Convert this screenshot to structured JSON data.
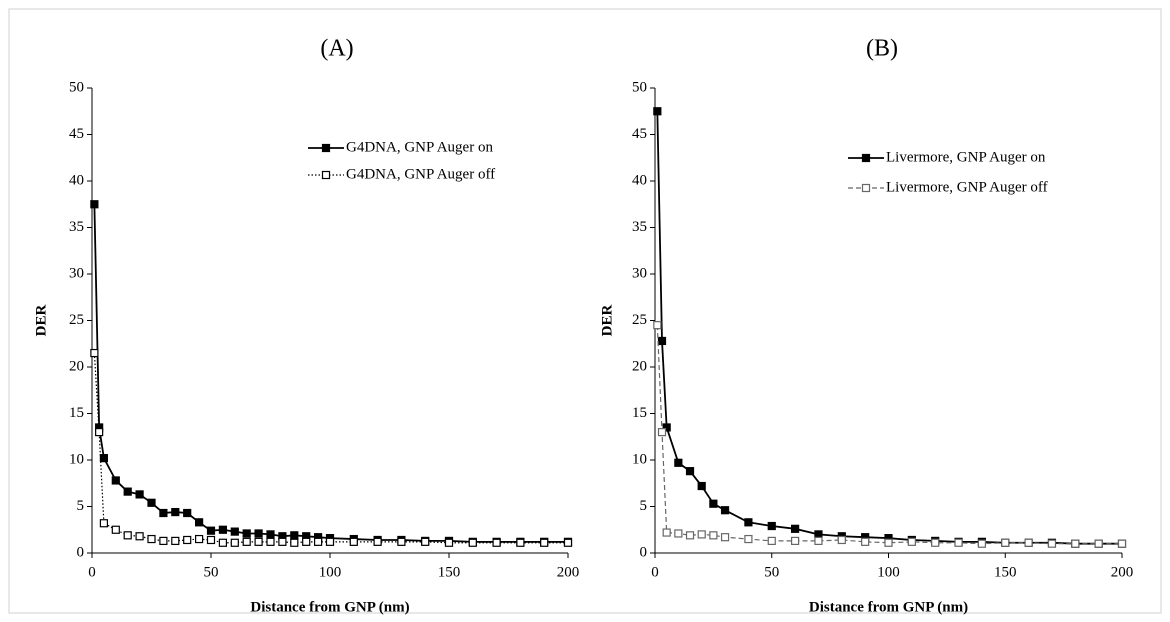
{
  "chart_data": [
    {
      "type": "line",
      "title": "(A)",
      "x_label": "Distance from GNP (nm)",
      "y_label": "DER",
      "x": [
        1,
        3,
        5,
        10,
        15,
        20,
        25,
        30,
        35,
        40,
        45,
        50,
        55,
        60,
        65,
        70,
        75,
        80,
        85,
        90,
        95,
        100,
        110,
        120,
        130,
        140,
        150,
        160,
        170,
        180,
        190,
        200
      ],
      "series": [
        {
          "name": "G4DNA, GNP Auger on",
          "color": "#000000",
          "marker": "filled-square",
          "dash": "solid",
          "values": [
            37.5,
            13.5,
            10.2,
            7.8,
            6.6,
            6.3,
            5.4,
            4.3,
            4.4,
            4.3,
            3.3,
            2.4,
            2.5,
            2.3,
            2.1,
            2.1,
            2.0,
            1.8,
            1.9,
            1.8,
            1.7,
            1.6,
            1.5,
            1.4,
            1.4,
            1.3,
            1.3,
            1.2,
            1.2,
            1.2,
            1.2,
            1.2
          ]
        },
        {
          "name": "G4DNA, GNP Auger off",
          "color": "#000000",
          "marker": "open-square",
          "dash": "dotted",
          "values": [
            21.5,
            13,
            3.2,
            2.5,
            1.9,
            1.8,
            1.5,
            1.3,
            1.3,
            1.4,
            1.5,
            1.4,
            1.1,
            1.1,
            1.2,
            1.2,
            1.2,
            1.2,
            1.1,
            1.2,
            1.2,
            1.2,
            1.2,
            1.2,
            1.2,
            1.2,
            1.1,
            1.1,
            1.1,
            1.1,
            1.1,
            1.1
          ]
        }
      ],
      "xlim": [
        0,
        200
      ],
      "xticks": [
        0,
        50,
        100,
        150,
        200
      ],
      "ylim": [
        0,
        50
      ],
      "yticks": [
        0,
        5,
        10,
        15,
        20,
        25,
        30,
        35,
        40,
        45,
        50
      ]
    },
    {
      "type": "line",
      "title": "(B)",
      "x_label": "Distance from GNP (nm)",
      "y_label": "DER",
      "x": [
        1,
        3,
        5,
        10,
        15,
        20,
        25,
        30,
        40,
        50,
        60,
        70,
        80,
        90,
        100,
        110,
        120,
        130,
        140,
        150,
        160,
        170,
        180,
        190,
        200
      ],
      "series": [
        {
          "name": "Livermore, GNP Auger on",
          "color": "#000000",
          "marker": "filled-square",
          "dash": "solid",
          "values": [
            47.5,
            22.8,
            13.5,
            9.7,
            8.8,
            7.2,
            5.3,
            4.6,
            3.3,
            2.9,
            2.6,
            2.0,
            1.8,
            1.7,
            1.6,
            1.4,
            1.3,
            1.2,
            1.2,
            1.1,
            1.1,
            1.1,
            1.0,
            1.0,
            1.0
          ]
        },
        {
          "name": "Livermore, GNP Auger off",
          "color": "#666666",
          "marker": "open-square",
          "dash": "dashed",
          "values": [
            24.5,
            13,
            2.2,
            2.1,
            1.9,
            2.0,
            1.9,
            1.7,
            1.5,
            1.3,
            1.3,
            1.3,
            1.4,
            1.2,
            1.1,
            1.2,
            1.1,
            1.1,
            1.0,
            1.1,
            1.1,
            1.0,
            1.0,
            1.0,
            1.0
          ]
        }
      ],
      "xlim": [
        0,
        200
      ],
      "xticks": [
        0,
        50,
        100,
        150,
        200
      ],
      "ylim": [
        0,
        50
      ],
      "yticks": [
        0,
        5,
        10,
        15,
        20,
        25,
        30,
        35,
        40,
        45,
        50
      ]
    }
  ]
}
